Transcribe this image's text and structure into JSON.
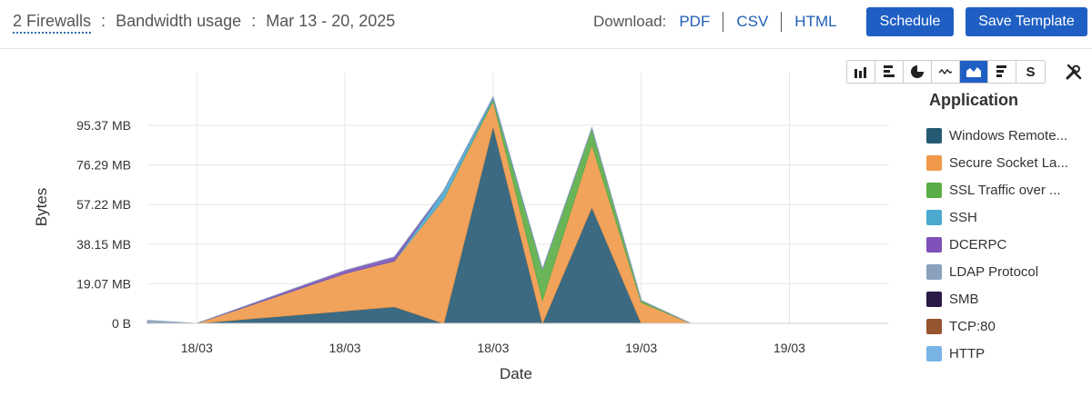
{
  "header": {
    "firewalls_link": "2 Firewalls",
    "separator": ":",
    "report_name": "Bandwidth usage",
    "date_range": "Mar 13 - 20, 2025",
    "download_label": "Download:",
    "download_links": [
      "PDF",
      "CSV",
      "HTML"
    ],
    "schedule_label": "Schedule",
    "save_template_label": "Save Template"
  },
  "toolbar": {
    "tools": [
      "bar-chart-icon",
      "horizontal-bar-icon",
      "pie-chart-icon",
      "line-chart-icon",
      "area-chart-icon",
      "stacked-bar-icon",
      "s-letter-icon"
    ],
    "active_tool": "area-chart-icon",
    "s_letter": "S",
    "settings_icon": "wrench-screwdriver-icon"
  },
  "colors": {
    "accent": "#1f5fc4",
    "grid": "#e6e6e6"
  },
  "chart_data": {
    "type": "area",
    "stacked": true,
    "xlabel": "Date",
    "ylabel": "Bytes",
    "x_tick_labels": [
      "18/03",
      "18/03",
      "18/03",
      "19/03",
      "19/03"
    ],
    "y_tick_labels": [
      "0 B",
      "19.07 MB",
      "38.15 MB",
      "57.22 MB",
      "76.29 MB",
      "95.37 MB"
    ],
    "y_ticks": [
      0,
      19.07,
      38.15,
      57.22,
      76.29,
      95.37
    ],
    "ylim": [
      0,
      112
    ],
    "x": [
      0,
      1,
      2,
      3,
      4,
      5,
      6,
      7,
      8,
      9,
      10,
      11,
      12,
      13,
      14,
      15
    ],
    "xlim": [
      0,
      15
    ],
    "x_tick_positions": [
      1,
      4,
      7,
      10,
      13
    ],
    "grid": true,
    "legend_title": "Application",
    "legend_position": "right",
    "series": [
      {
        "name": "Windows Remote...",
        "color": "#265a74",
        "values": [
          0.5,
          0,
          2,
          4,
          6,
          8,
          0,
          95,
          0,
          56,
          0,
          0,
          0,
          0,
          0,
          0
        ]
      },
      {
        "name": "Secure Socket La...",
        "color": "#f0994a",
        "values": [
          0,
          0,
          6,
          12,
          18,
          22,
          60,
          12,
          11,
          30,
          10,
          0,
          0,
          0,
          0,
          0
        ]
      },
      {
        "name": "SSL Traffic over ...",
        "color": "#5aad46",
        "values": [
          0,
          0,
          0,
          0,
          0,
          0,
          0,
          1,
          15,
          8,
          1,
          0,
          0,
          0,
          0,
          0
        ]
      },
      {
        "name": "SSH",
        "color": "#4ba9cf",
        "values": [
          0,
          0,
          0,
          0,
          0,
          0,
          4,
          1,
          0,
          0,
          0,
          0,
          0,
          0,
          0,
          0
        ]
      },
      {
        "name": "DCERPC",
        "color": "#7e52b8",
        "values": [
          0,
          0,
          0.5,
          1,
          1.5,
          2,
          0,
          0,
          0,
          0,
          0,
          0,
          0,
          0,
          0,
          0
        ]
      },
      {
        "name": "LDAP Protocol",
        "color": "#8aa2bd",
        "values": [
          1,
          0,
          0,
          0,
          0,
          0,
          0,
          0,
          0,
          0,
          0,
          0,
          0,
          0,
          0,
          0
        ]
      },
      {
        "name": "SMB",
        "color": "#2b1a46",
        "values": [
          0,
          0,
          0,
          0,
          0,
          0,
          0,
          0,
          0,
          0,
          0,
          0,
          0,
          0,
          0,
          0
        ]
      },
      {
        "name": "TCP:80",
        "color": "#96552f",
        "values": [
          0,
          0,
          0,
          0,
          0,
          0,
          0,
          0,
          0,
          0,
          0,
          0,
          0,
          0,
          0,
          0
        ]
      },
      {
        "name": "HTTP",
        "color": "#7ab3e6",
        "values": [
          0,
          0,
          0,
          0,
          0,
          0,
          0,
          0,
          0,
          0,
          0,
          0,
          0,
          0,
          0,
          0
        ]
      }
    ]
  }
}
